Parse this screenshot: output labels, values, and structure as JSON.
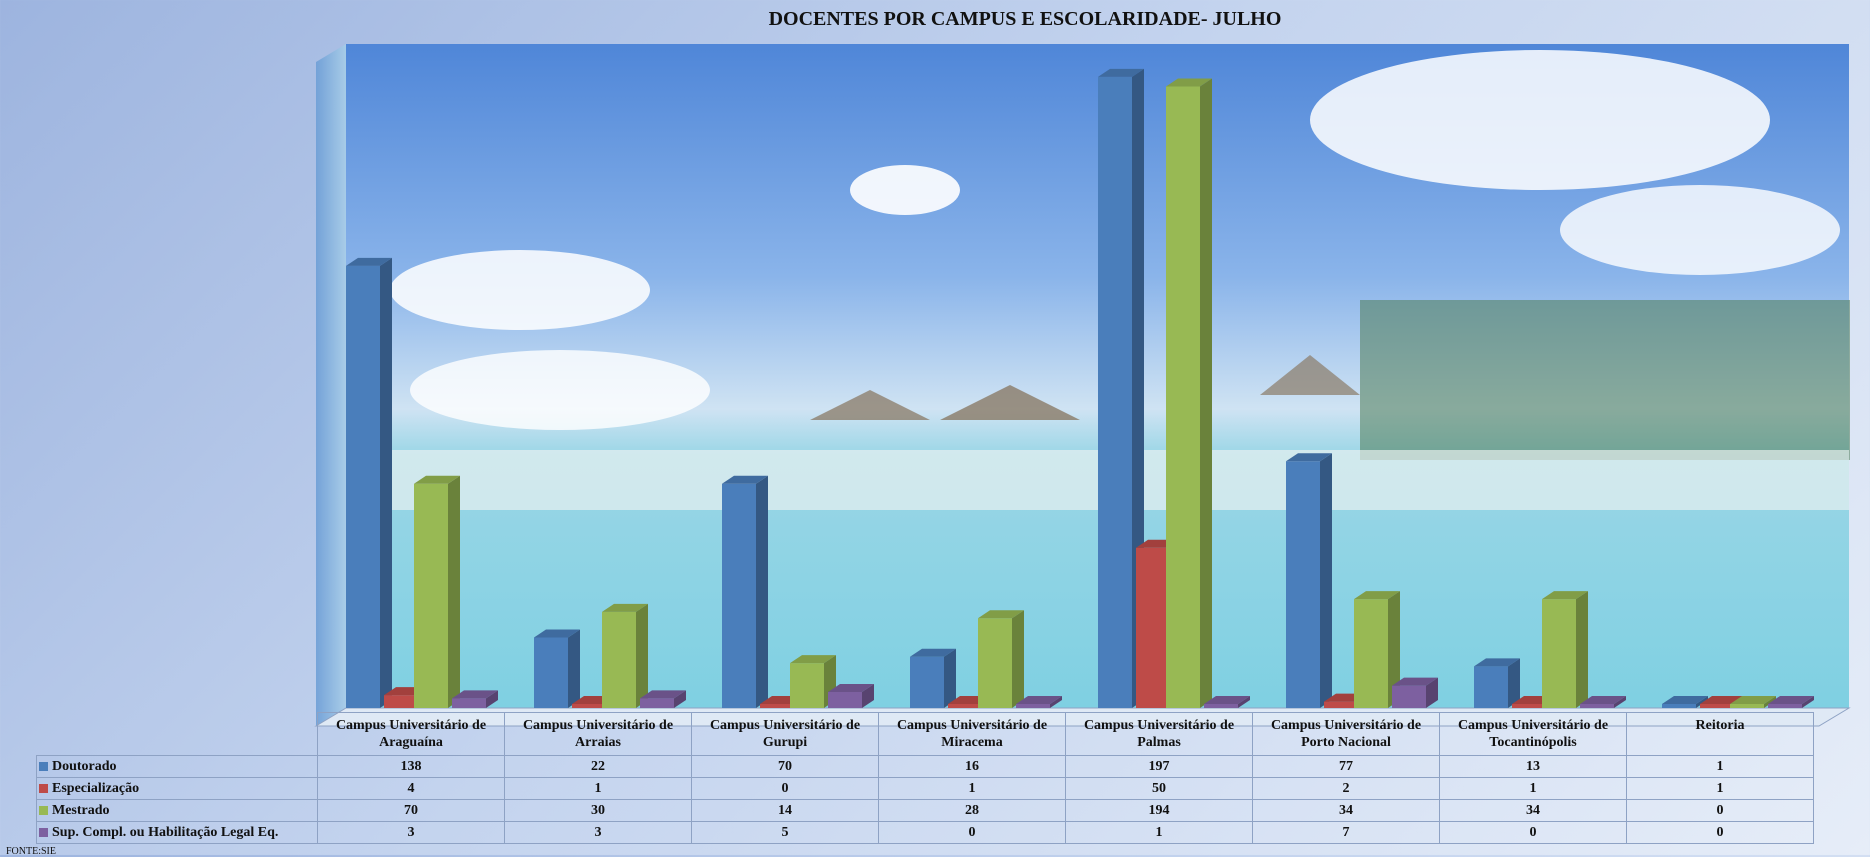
{
  "chart_data": {
    "type": "bar",
    "title": "DOCENTES  POR CAMPUS E ESCOLARIDADE-  JULHO",
    "source": "FONTE:SIE",
    "categories": [
      "Campus Universitário de Araguaína",
      "Campus Universitário de Arraias",
      "Campus Universitário de Gurupi",
      "Campus Universitário de Miracema",
      "Campus Universitário de Palmas",
      "Campus Universitário de Porto Nacional",
      "Campus Universitário de Tocantinópolis",
      "Reitoria"
    ],
    "series": [
      {
        "name": "Doutorado",
        "color": "#4a7ebb",
        "values": [
          138,
          22,
          70,
          16,
          197,
          77,
          13,
          1
        ]
      },
      {
        "name": "Especialização",
        "color": "#be4b48",
        "values": [
          4,
          1,
          0,
          1,
          50,
          2,
          1,
          1
        ]
      },
      {
        "name": "Mestrado",
        "color": "#98b954",
        "values": [
          70,
          30,
          14,
          28,
          194,
          34,
          34,
          0
        ]
      },
      {
        "name": "Sup. Compl. ou Habilitação Legal Eq.",
        "color": "#7d60a0",
        "values": [
          3,
          3,
          5,
          0,
          1,
          7,
          0,
          0
        ]
      }
    ],
    "legend": "table",
    "grid": false,
    "ylim": [
      0,
      200
    ]
  }
}
